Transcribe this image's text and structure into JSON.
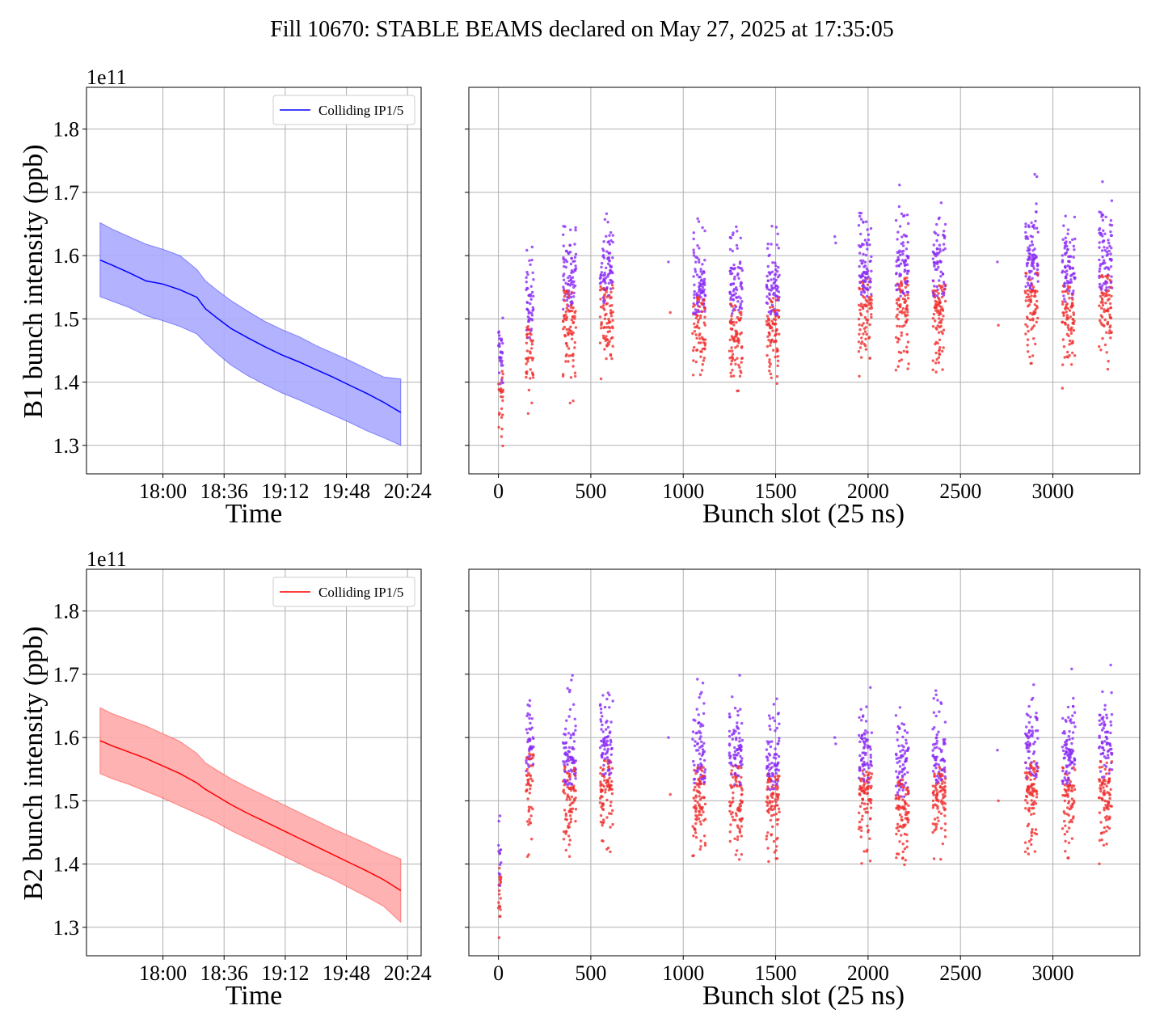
{
  "figure": {
    "title": "Fill 10670: STABLE BEAMS declared on May 27, 2025 at 17:35:05",
    "offset_label": "1e11"
  },
  "colors": {
    "b1": "#0000ff",
    "b1_band": "#aaaaff",
    "b2": "#ff0000",
    "b2_band": "#ffaaaa",
    "scatter_high": "#8b2cf5",
    "scatter_low": "#f03030",
    "grid": "#b0b0b0"
  },
  "chart_data": [
    {
      "id": "b1-time",
      "type": "line",
      "title": "",
      "xlabel": "Time",
      "ylabel": "B1 bunch intensity (ppb)",
      "y_multiplier": "1e11",
      "x_ticks": [
        "18:00",
        "18:36",
        "19:12",
        "19:48",
        "20:24"
      ],
      "x_tick_minutes": [
        1080,
        1116,
        1152,
        1188,
        1224
      ],
      "xlim_minutes": [
        1035,
        1232
      ],
      "y_ticks": [
        "1.3",
        "1.4",
        "1.5",
        "1.6",
        "1.7",
        "1.8"
      ],
      "ylim": [
        1.255,
        1.866
      ],
      "grid": true,
      "legend": {
        "position": "top-right",
        "entries": [
          "Colliding IP1/5"
        ]
      },
      "series": [
        {
          "name": "Colliding IP1/5",
          "x_minutes": [
            1043,
            1050,
            1060,
            1070,
            1080,
            1090,
            1100,
            1105,
            1112,
            1120,
            1130,
            1140,
            1150,
            1160,
            1170,
            1180,
            1190,
            1200,
            1210,
            1220
          ],
          "mean": [
            1.593,
            1.585,
            1.573,
            1.56,
            1.555,
            1.546,
            1.534,
            1.516,
            1.501,
            1.485,
            1.47,
            1.456,
            1.443,
            1.432,
            1.42,
            1.408,
            1.395,
            1.382,
            1.368,
            1.352
          ],
          "upper": [
            1.652,
            1.642,
            1.63,
            1.618,
            1.61,
            1.6,
            1.578,
            1.56,
            1.545,
            1.529,
            1.512,
            1.496,
            1.483,
            1.472,
            1.458,
            1.446,
            1.434,
            1.421,
            1.408,
            1.405
          ],
          "lower": [
            1.535,
            1.528,
            1.518,
            1.505,
            1.497,
            1.488,
            1.476,
            1.462,
            1.445,
            1.427,
            1.41,
            1.396,
            1.383,
            1.372,
            1.36,
            1.348,
            1.336,
            1.323,
            1.312,
            1.3
          ]
        }
      ]
    },
    {
      "id": "b1-slots",
      "type": "scatter",
      "title": "",
      "xlabel": "Bunch slot (25 ns)",
      "ylabel": "",
      "x_ticks": [
        "0",
        "500",
        "1000",
        "1500",
        "2000",
        "2500",
        "3000"
      ],
      "xlim": [
        -160,
        3470
      ],
      "ylim": [
        1.255,
        1.866
      ],
      "grid": true,
      "trains": [
        {
          "x": [
            0,
            25
          ],
          "mean": 1.41
        },
        {
          "x": [
            150,
            190
          ],
          "mean": 1.48
        },
        {
          "x": [
            350,
            420
          ],
          "mean": 1.53
        },
        {
          "x": [
            550,
            620
          ],
          "mean": 1.54
        },
        {
          "x": [
            1050,
            1120
          ],
          "mean": 1.52
        },
        {
          "x": [
            1250,
            1320
          ],
          "mean": 1.51
        },
        {
          "x": [
            1450,
            1520
          ],
          "mean": 1.52
        },
        {
          "x": [
            1950,
            2020
          ],
          "mean": 1.55
        },
        {
          "x": [
            2150,
            2220
          ],
          "mean": 1.55
        },
        {
          "x": [
            2350,
            2420
          ],
          "mean": 1.55
        },
        {
          "x": [
            2850,
            2920
          ],
          "mean": 1.56
        },
        {
          "x": [
            3050,
            3120
          ],
          "mean": 1.54
        },
        {
          "x": [
            3250,
            3320
          ],
          "mean": 1.56
        }
      ],
      "isolated_points": [
        {
          "x": 920,
          "y": 1.59
        },
        {
          "x": 930,
          "y": 1.51
        },
        {
          "x": 1820,
          "y": 1.63
        },
        {
          "x": 1825,
          "y": 1.62
        },
        {
          "x": 2700,
          "y": 1.59
        },
        {
          "x": 2705,
          "y": 1.49
        }
      ]
    },
    {
      "id": "b2-time",
      "type": "line",
      "title": "",
      "xlabel": "Time",
      "ylabel": "B2 bunch intensity (ppb)",
      "y_multiplier": "1e11",
      "x_ticks": [
        "18:00",
        "18:36",
        "19:12",
        "19:48",
        "20:24"
      ],
      "x_tick_minutes": [
        1080,
        1116,
        1152,
        1188,
        1224
      ],
      "xlim_minutes": [
        1035,
        1232
      ],
      "y_ticks": [
        "1.3",
        "1.4",
        "1.5",
        "1.6",
        "1.7",
        "1.8"
      ],
      "ylim": [
        1.255,
        1.866
      ],
      "grid": true,
      "legend": {
        "position": "top-right",
        "entries": [
          "Colliding IP1/5"
        ]
      },
      "series": [
        {
          "name": "Colliding IP1/5",
          "x_minutes": [
            1043,
            1050,
            1060,
            1070,
            1080,
            1090,
            1100,
            1105,
            1112,
            1120,
            1130,
            1140,
            1150,
            1160,
            1170,
            1180,
            1190,
            1200,
            1210,
            1220
          ],
          "mean": [
            1.595,
            1.587,
            1.577,
            1.567,
            1.555,
            1.543,
            1.528,
            1.518,
            1.507,
            1.494,
            1.48,
            1.467,
            1.454,
            1.441,
            1.428,
            1.415,
            1.402,
            1.389,
            1.375,
            1.358
          ],
          "upper": [
            1.647,
            1.638,
            1.628,
            1.618,
            1.606,
            1.594,
            1.575,
            1.56,
            1.548,
            1.535,
            1.521,
            1.508,
            1.495,
            1.482,
            1.469,
            1.456,
            1.444,
            1.432,
            1.419,
            1.408
          ],
          "lower": [
            1.543,
            1.535,
            1.526,
            1.515,
            1.504,
            1.492,
            1.48,
            1.474,
            1.465,
            1.453,
            1.44,
            1.427,
            1.414,
            1.401,
            1.388,
            1.376,
            1.362,
            1.348,
            1.333,
            1.308
          ]
        }
      ]
    },
    {
      "id": "b2-slots",
      "type": "scatter",
      "title": "",
      "xlabel": "Bunch slot (25 ns)",
      "ylabel": "",
      "x_ticks": [
        "0",
        "500",
        "1000",
        "1500",
        "2000",
        "2500",
        "3000"
      ],
      "xlim": [
        -160,
        3470
      ],
      "ylim": [
        1.255,
        1.866
      ],
      "grid": true,
      "trains": [
        {
          "x": [
            0,
            15
          ],
          "mean": 1.38
        },
        {
          "x": [
            150,
            190
          ],
          "mean": 1.56
        },
        {
          "x": [
            350,
            420
          ],
          "mean": 1.54
        },
        {
          "x": [
            550,
            620
          ],
          "mean": 1.55
        },
        {
          "x": [
            1050,
            1120
          ],
          "mean": 1.54
        },
        {
          "x": [
            1250,
            1320
          ],
          "mean": 1.54
        },
        {
          "x": [
            1450,
            1520
          ],
          "mean": 1.53
        },
        {
          "x": [
            1950,
            2020
          ],
          "mean": 1.54
        },
        {
          "x": [
            2150,
            2220
          ],
          "mean": 1.52
        },
        {
          "x": [
            2350,
            2420
          ],
          "mean": 1.54
        },
        {
          "x": [
            2850,
            2920
          ],
          "mean": 1.55
        },
        {
          "x": [
            3050,
            3120
          ],
          "mean": 1.54
        },
        {
          "x": [
            3250,
            3320
          ],
          "mean": 1.55
        }
      ],
      "isolated_points": [
        {
          "x": 920,
          "y": 1.6
        },
        {
          "x": 930,
          "y": 1.51
        },
        {
          "x": 1820,
          "y": 1.6
        },
        {
          "x": 1825,
          "y": 1.59
        },
        {
          "x": 2700,
          "y": 1.58
        },
        {
          "x": 2705,
          "y": 1.5
        }
      ]
    }
  ]
}
